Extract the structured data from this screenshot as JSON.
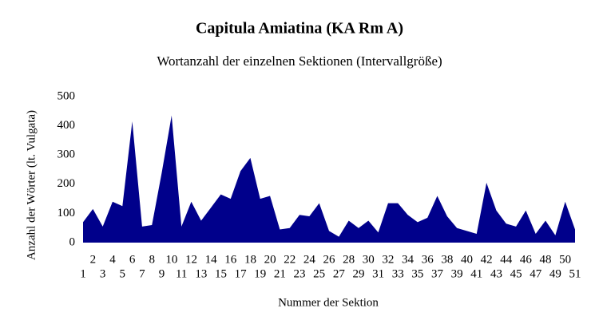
{
  "chart_data": {
    "type": "area",
    "title": "Capitula Amiatina (KA Rm A)",
    "subtitle": "Wortanzahl der einzelnen Sektionen (Intervallgröße)",
    "x_label": "Nummer der Sektion",
    "y_label": "Anzahl der Wörter (lt. Vulgata)",
    "color": "#00008b",
    "categories": [
      "1",
      "2",
      "3",
      "4",
      "5",
      "6",
      "7",
      "8",
      "9",
      "10",
      "11",
      "12",
      "13",
      "14",
      "15",
      "16",
      "17",
      "18",
      "19",
      "20",
      "21",
      "22",
      "23",
      "24",
      "25",
      "26",
      "27",
      "28",
      "29",
      "30",
      "31",
      "32",
      "33",
      "34",
      "35",
      "36",
      "37",
      "38",
      "39",
      "40",
      "41",
      "42",
      "43",
      "44",
      "45",
      "46",
      "47",
      "48",
      "49",
      "50",
      "51"
    ],
    "values": [
      70,
      115,
      55,
      140,
      125,
      415,
      55,
      60,
      240,
      435,
      55,
      140,
      75,
      120,
      165,
      150,
      245,
      290,
      150,
      160,
      45,
      50,
      95,
      90,
      135,
      40,
      20,
      75,
      50,
      75,
      35,
      135,
      135,
      95,
      70,
      85,
      160,
      90,
      50,
      40,
      30,
      205,
      110,
      65,
      55,
      110,
      30,
      75,
      25,
      140,
      45
    ],
    "ylim": [
      0,
      500
    ],
    "yticks": [
      0,
      100,
      200,
      300,
      400,
      500
    ]
  }
}
